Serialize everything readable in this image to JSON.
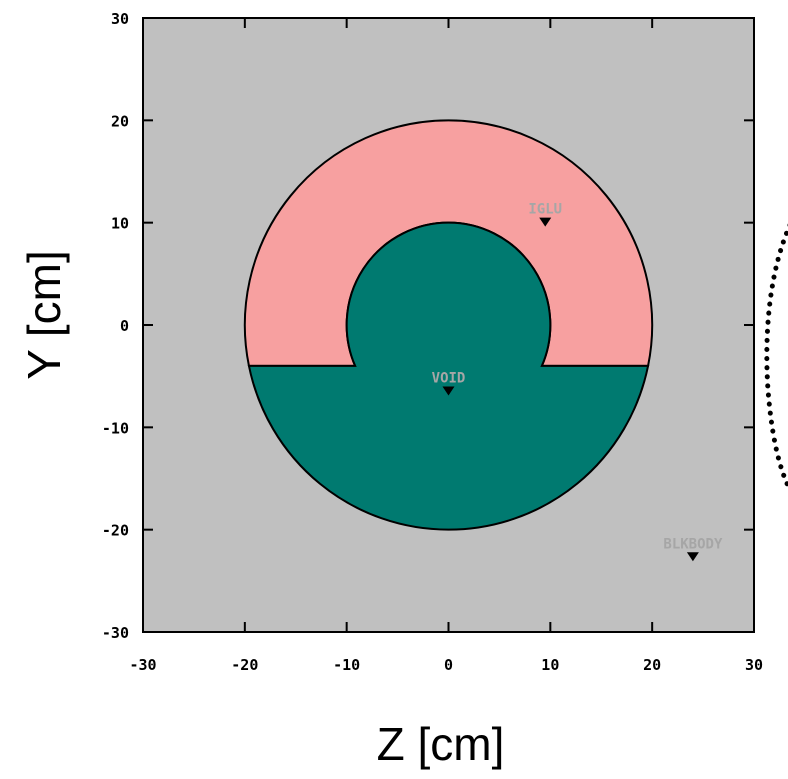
{
  "chart_data": {
    "type": "geometry-slice",
    "x_axis": {
      "title": "Z [cm]",
      "range": [
        -30,
        30
      ],
      "ticks": [
        -30,
        -20,
        -10,
        0,
        10,
        20,
        30
      ]
    },
    "y_axis": {
      "title": "Y [cm]",
      "range": [
        -30,
        30
      ],
      "ticks": [
        -30,
        -20,
        -10,
        0,
        10,
        20,
        30
      ]
    },
    "shapes": {
      "outer_radius": 20,
      "inner_radius": 10,
      "cut_y": -4
    },
    "regions": [
      {
        "name": "IGLU",
        "marker": [
          9.5,
          10
        ]
      },
      {
        "name": "VOID",
        "marker": [
          0,
          -6.5
        ]
      },
      {
        "name": "BLKBODY",
        "marker": [
          24,
          -22.7
        ]
      }
    ],
    "colors": {
      "background": "#c0c0c0",
      "iglu": "#f7a0a0",
      "void": "#007a70",
      "outline": "#000000",
      "label": "#a6a6a6"
    }
  }
}
